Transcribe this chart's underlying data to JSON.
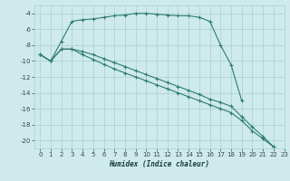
{
  "xlabel": "Humidex (Indice chaleur)",
  "bg_color": "#ceeaea",
  "grid_color": "#aacfcf",
  "line_color": "#2e7d6e",
  "xlim": [
    -0.5,
    23
  ],
  "ylim": [
    -21,
    -3
  ],
  "yticks": [
    -4,
    -6,
    -8,
    -10,
    -12,
    -14,
    -16,
    -18,
    -20
  ],
  "xticks": [
    0,
    1,
    2,
    3,
    4,
    5,
    6,
    7,
    8,
    9,
    10,
    11,
    12,
    13,
    14,
    15,
    16,
    17,
    18,
    19,
    20,
    21,
    22,
    23
  ],
  "series": [
    {
      "x": [
        0,
        1,
        2,
        3,
        4,
        5,
        6,
        7,
        8,
        9,
        10,
        11,
        12,
        13,
        14,
        15,
        16,
        17,
        18,
        19
      ],
      "y": [
        -9.2,
        -10.0,
        -7.5,
        -5.0,
        -4.8,
        -4.7,
        -4.5,
        -4.3,
        -4.2,
        -4.0,
        -4.0,
        -4.1,
        -4.2,
        -4.3,
        -4.3,
        -4.5,
        -5.0,
        -8.0,
        -10.5,
        -15.0
      ]
    },
    {
      "x": [
        0,
        1,
        2,
        3,
        4,
        5,
        6,
        7,
        8,
        9,
        10,
        11,
        12,
        13,
        14,
        15,
        16,
        17,
        18,
        19,
        20,
        21,
        22
      ],
      "y": [
        -9.2,
        -10.0,
        -8.5,
        -8.5,
        -8.8,
        -9.2,
        -9.7,
        -10.2,
        -10.7,
        -11.2,
        -11.7,
        -12.2,
        -12.7,
        -13.2,
        -13.7,
        -14.2,
        -14.8,
        -15.2,
        -15.7,
        -17.0,
        -18.3,
        -19.5,
        -20.8
      ]
    },
    {
      "x": [
        0,
        1,
        2,
        3,
        4,
        5,
        6,
        7,
        8,
        9,
        10,
        11,
        12,
        13,
        14,
        15,
        16,
        17,
        18,
        19,
        20,
        21,
        22
      ],
      "y": [
        -9.2,
        -10.0,
        -8.5,
        -8.5,
        -9.2,
        -9.8,
        -10.4,
        -11.0,
        -11.5,
        -12.0,
        -12.5,
        -13.0,
        -13.5,
        -14.0,
        -14.5,
        -15.0,
        -15.5,
        -16.0,
        -16.5,
        -17.5,
        -18.8,
        -19.8,
        -20.8
      ]
    }
  ]
}
